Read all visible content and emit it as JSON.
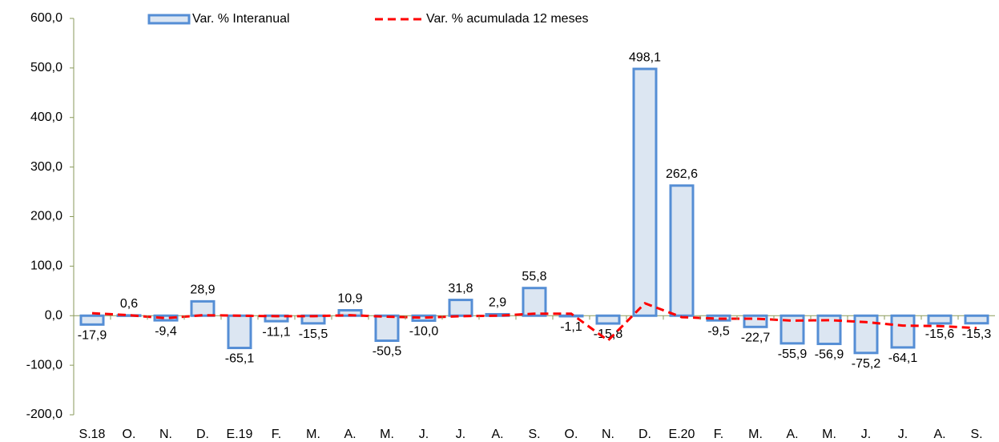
{
  "chart_data": {
    "type": "bar",
    "categories": [
      "S.18",
      "O.",
      "N.",
      "D.",
      "E.19",
      "F.",
      "M.",
      "A.",
      "M.",
      "J.",
      "J.",
      "A.",
      "S.",
      "O.",
      "N.",
      "D.",
      "E.20",
      "F.",
      "M.",
      "A.",
      "M.",
      "J.",
      "J.",
      "A.",
      "S."
    ],
    "series": [
      {
        "name": "Var. % Interanual",
        "type": "bar",
        "color": "#dce6f2",
        "stroke": "#558ed5",
        "values": [
          -17.9,
          0.6,
          -9.4,
          28.9,
          -65.1,
          -11.1,
          -15.5,
          10.9,
          -50.5,
          -10.0,
          31.8,
          2.9,
          55.8,
          -1.1,
          -15.8,
          498.1,
          262.6,
          -9.5,
          -22.7,
          -55.9,
          -56.9,
          -75.2,
          -64.1,
          -15.6,
          -15.3
        ],
        "value_labels": [
          "-17,9",
          "0,6",
          "-9,4",
          "28,9",
          "-65,1",
          "-11,1",
          "-15,5",
          "10,9",
          "-50,5",
          "-10,0",
          "31,8",
          "2,9",
          "55,8",
          "-1,1",
          "-15,8",
          "498,1",
          "262,6",
          "-9,5",
          "-22,7",
          "-55,9",
          "-56,9",
          "-75,2",
          "-64,1",
          "-15,6",
          "-15,3"
        ]
      },
      {
        "name": "Var. % acumulada 12 meses",
        "type": "line",
        "color": "#ff0000",
        "values": [
          5,
          1,
          -5,
          1,
          0,
          -1,
          -1,
          1,
          -2,
          -4,
          -1,
          0,
          4,
          4,
          -50,
          25,
          -3,
          -6,
          -6,
          -10,
          -9,
          -13,
          -20,
          -21,
          -25
        ]
      }
    ],
    "ylim": [
      -200,
      600
    ],
    "yticks": [
      {
        "value": -200,
        "label": "-200,0"
      },
      {
        "value": -100,
        "label": "-100,0"
      },
      {
        "value": 0,
        "label": "0,0"
      },
      {
        "value": 100,
        "label": "100,0"
      },
      {
        "value": 200,
        "label": "200,0"
      },
      {
        "value": 300,
        "label": "300,0"
      },
      {
        "value": 400,
        "label": "400,0"
      },
      {
        "value": 500,
        "label": "500,0"
      },
      {
        "value": 600,
        "label": "600,0"
      }
    ],
    "axis_color": "#8a9a5b"
  }
}
